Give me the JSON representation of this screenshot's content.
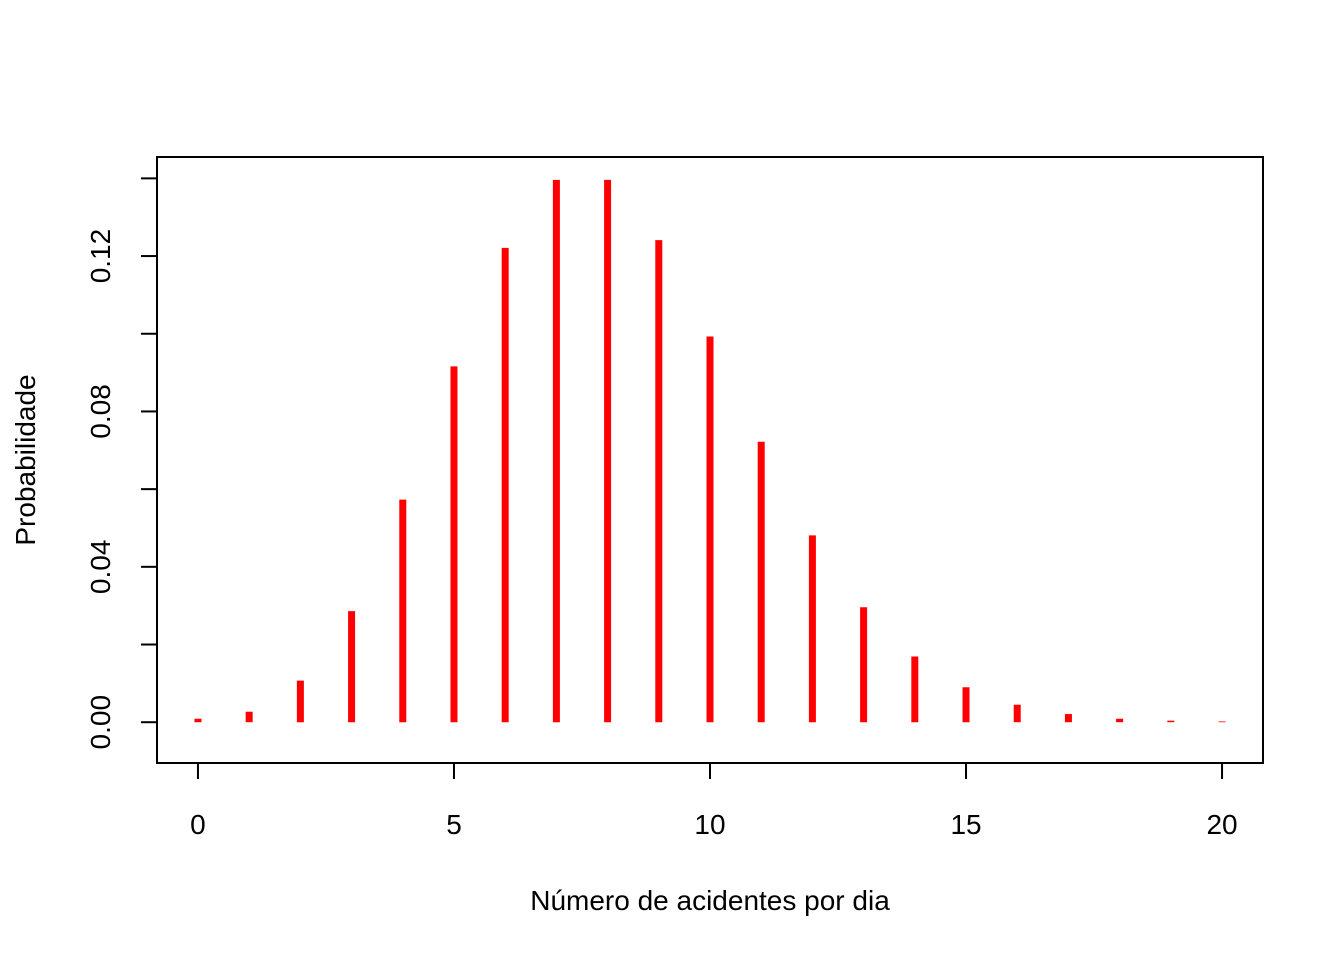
{
  "chart_data": {
    "type": "bar",
    "xlabel": "Número de acidentes por dia",
    "ylabel": "Probabilidade",
    "x": [
      0,
      1,
      2,
      3,
      4,
      5,
      6,
      7,
      8,
      9,
      10,
      11,
      12,
      13,
      14,
      15,
      16,
      17,
      18,
      19,
      20
    ],
    "values": [
      0.0009,
      0.0027,
      0.0107,
      0.0286,
      0.0573,
      0.0916,
      0.1221,
      0.1396,
      0.1396,
      0.1241,
      0.0993,
      0.0722,
      0.0481,
      0.0296,
      0.0169,
      0.009,
      0.0045,
      0.0021,
      0.0009,
      0.0004,
      0.0002
    ],
    "xlim": [
      -0.8,
      20.8
    ],
    "ylim": [
      -0.0105,
      0.1455
    ],
    "xticks": [
      0,
      5,
      10,
      15,
      20
    ],
    "xtick_labels": [
      "0",
      "5",
      "10",
      "15",
      "20"
    ],
    "yticks": [
      0,
      0.02,
      0.04,
      0.06,
      0.08,
      0.1,
      0.12,
      0.14
    ],
    "ytick_labels": [
      "0.00",
      "",
      "0.04",
      "",
      "0.08",
      "",
      "0.12",
      ""
    ],
    "bar_color": "#ff0000",
    "grid": false
  }
}
